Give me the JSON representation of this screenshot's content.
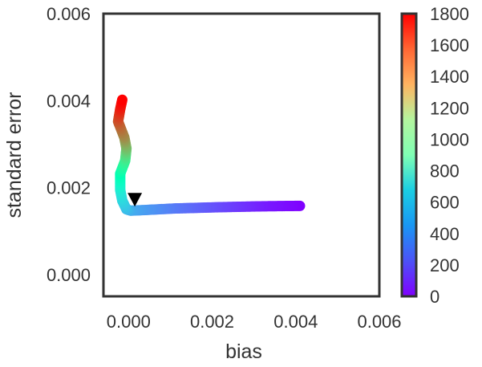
{
  "chart_data": {
    "type": "scatter",
    "xlabel": "bias",
    "ylabel": "standard error",
    "xlim": [
      -0.0006,
      0.006
    ],
    "ylim": [
      -0.0005,
      0.006
    ],
    "x_ticks": [
      "0.000",
      "0.002",
      "0.004",
      "0.006"
    ],
    "x_tick_values": [
      0.0,
      0.002,
      0.004,
      0.006
    ],
    "y_ticks": [
      "0.000",
      "0.002",
      "0.004",
      "0.006"
    ],
    "y_tick_values": [
      0.0,
      0.002,
      0.004,
      0.006
    ],
    "grid": false,
    "colorbar": {
      "min": 0,
      "max": 1800,
      "colormap": "rainbow",
      "tick_values": [
        0,
        200,
        400,
        600,
        800,
        1000,
        1200,
        1400,
        1600,
        1800
      ],
      "tick_labels": [
        "0",
        "200",
        "400",
        "600",
        "800",
        "1000",
        "1200",
        "1400",
        "1600",
        "1800"
      ]
    },
    "trajectory_path": [
      {
        "c": 0,
        "x": 0.0041,
        "y": 0.00158
      },
      {
        "c": 60,
        "x": 0.0032,
        "y": 0.00157
      },
      {
        "c": 160,
        "x": 0.0022,
        "y": 0.00155
      },
      {
        "c": 280,
        "x": 0.0011,
        "y": 0.00152
      },
      {
        "c": 380,
        "x": 0.0003,
        "y": 0.00148
      },
      {
        "c": 420,
        "x": 5e-05,
        "y": 0.00147
      },
      {
        "c": 470,
        "x": -5e-05,
        "y": 0.0015
      },
      {
        "c": 560,
        "x": -0.00015,
        "y": 0.0017
      },
      {
        "c": 660,
        "x": -0.0002,
        "y": 0.00195
      },
      {
        "c": 900,
        "x": -0.0002,
        "y": 0.00232
      },
      {
        "c": 1100,
        "x": -8e-05,
        "y": 0.00262
      },
      {
        "c": 1300,
        "x": -5e-05,
        "y": 0.0029
      },
      {
        "c": 1450,
        "x": -0.0001,
        "y": 0.00315
      },
      {
        "c": 1600,
        "x": -0.00025,
        "y": 0.00352
      },
      {
        "c": 1720,
        "x": -0.0002,
        "y": 0.0038
      },
      {
        "c": 1800,
        "x": -0.00015,
        "y": 0.00402
      }
    ],
    "marker": {
      "symbol": "down-triangle",
      "x": 0.00015,
      "y": 0.00173,
      "color": "#000000"
    },
    "colors": {
      "axis": "#333333",
      "text": "#333333",
      "background": "#ffffff"
    }
  }
}
